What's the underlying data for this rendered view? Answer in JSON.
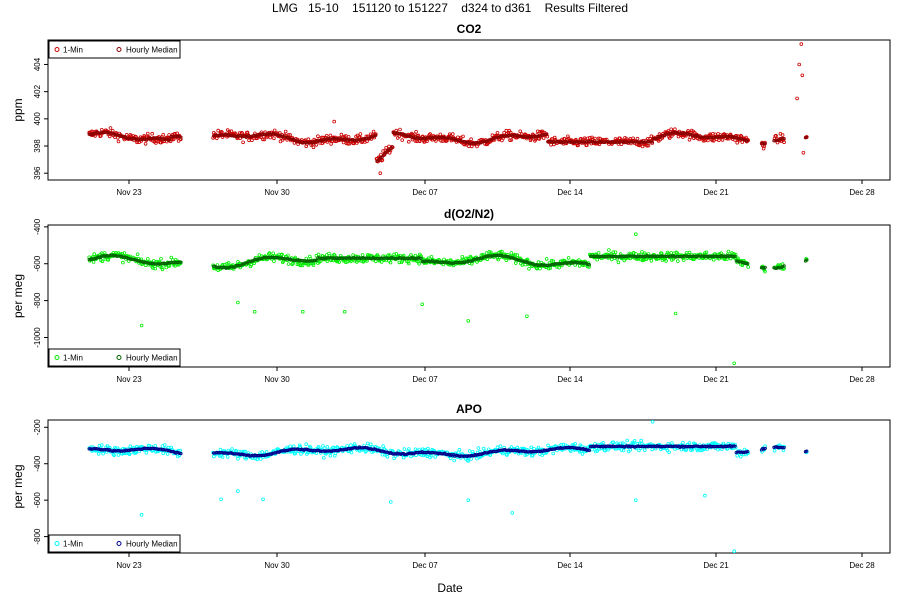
{
  "page": {
    "title": "LMG   15-10    151120 to 151227    d324 to d361    Results Filtered",
    "xlabel": "Date"
  },
  "chart_data": [
    {
      "type": "scatter",
      "title": "CO2",
      "ylabel": "ppm",
      "xlabel": "Date",
      "x_ticks": [
        "Nov 23",
        "Nov 30",
        "Dec 07",
        "Dec 14",
        "Dec 21",
        "Dec 28"
      ],
      "xlim_days": [
        324,
        362
      ],
      "y_ticks": [
        396,
        398,
        400,
        402,
        404
      ],
      "ylim": [
        395.5,
        405.8
      ],
      "legend": {
        "position": "top-left",
        "entries": [
          "1-Min",
          "Hourly Median"
        ]
      },
      "colors": {
        "one_min": "#cc0000",
        "hourly": "#8b0000"
      },
      "series": [
        {
          "name": "1-Min",
          "approx_level": 398.7,
          "range": [
            396.0,
            405.5
          ],
          "notes": "dense band ~398-399; dip to 396 near Dec 07; spikes to 405.5 near Dec 27"
        },
        {
          "name": "Hourly Median",
          "approx_level": 398.7
        }
      ]
    },
    {
      "type": "scatter",
      "title": "d(O2/N2)",
      "ylabel": "per meg",
      "xlabel": "Date",
      "x_ticks": [
        "Nov 23",
        "Nov 30",
        "Dec 07",
        "Dec 14",
        "Dec 21",
        "Dec 28"
      ],
      "xlim_days": [
        324,
        362
      ],
      "y_ticks": [
        -1000,
        -800,
        -600,
        -400
      ],
      "ylim": [
        -1160,
        -390
      ],
      "legend": {
        "position": "bottom-left",
        "entries": [
          "1-Min",
          "Hourly Median"
        ]
      },
      "colors": {
        "one_min": "#00ee00",
        "hourly": "#006400"
      },
      "series": [
        {
          "name": "1-Min",
          "approx_level": -590,
          "range": [
            -1140,
            -420
          ]
        },
        {
          "name": "Hourly Median",
          "approx_level": -590
        }
      ]
    },
    {
      "type": "scatter",
      "title": "APO",
      "ylabel": "per meg",
      "xlabel": "Date",
      "x_ticks": [
        "Nov 23",
        "Nov 30",
        "Dec 07",
        "Dec 14",
        "Dec 21",
        "Dec 28"
      ],
      "xlim_days": [
        324,
        362
      ],
      "y_ticks": [
        -800,
        -600,
        -400,
        -200
      ],
      "ylim": [
        -890,
        -160
      ],
      "legend": {
        "position": "bottom-left",
        "entries": [
          "1-Min",
          "Hourly Median"
        ]
      },
      "colors": {
        "one_min": "#00ffff",
        "hourly": "#00008b"
      },
      "series": [
        {
          "name": "1-Min",
          "approx_level": -330,
          "range": [
            -880,
            -170
          ]
        },
        {
          "name": "Hourly Median",
          "approx_level": -330
        }
      ]
    }
  ]
}
